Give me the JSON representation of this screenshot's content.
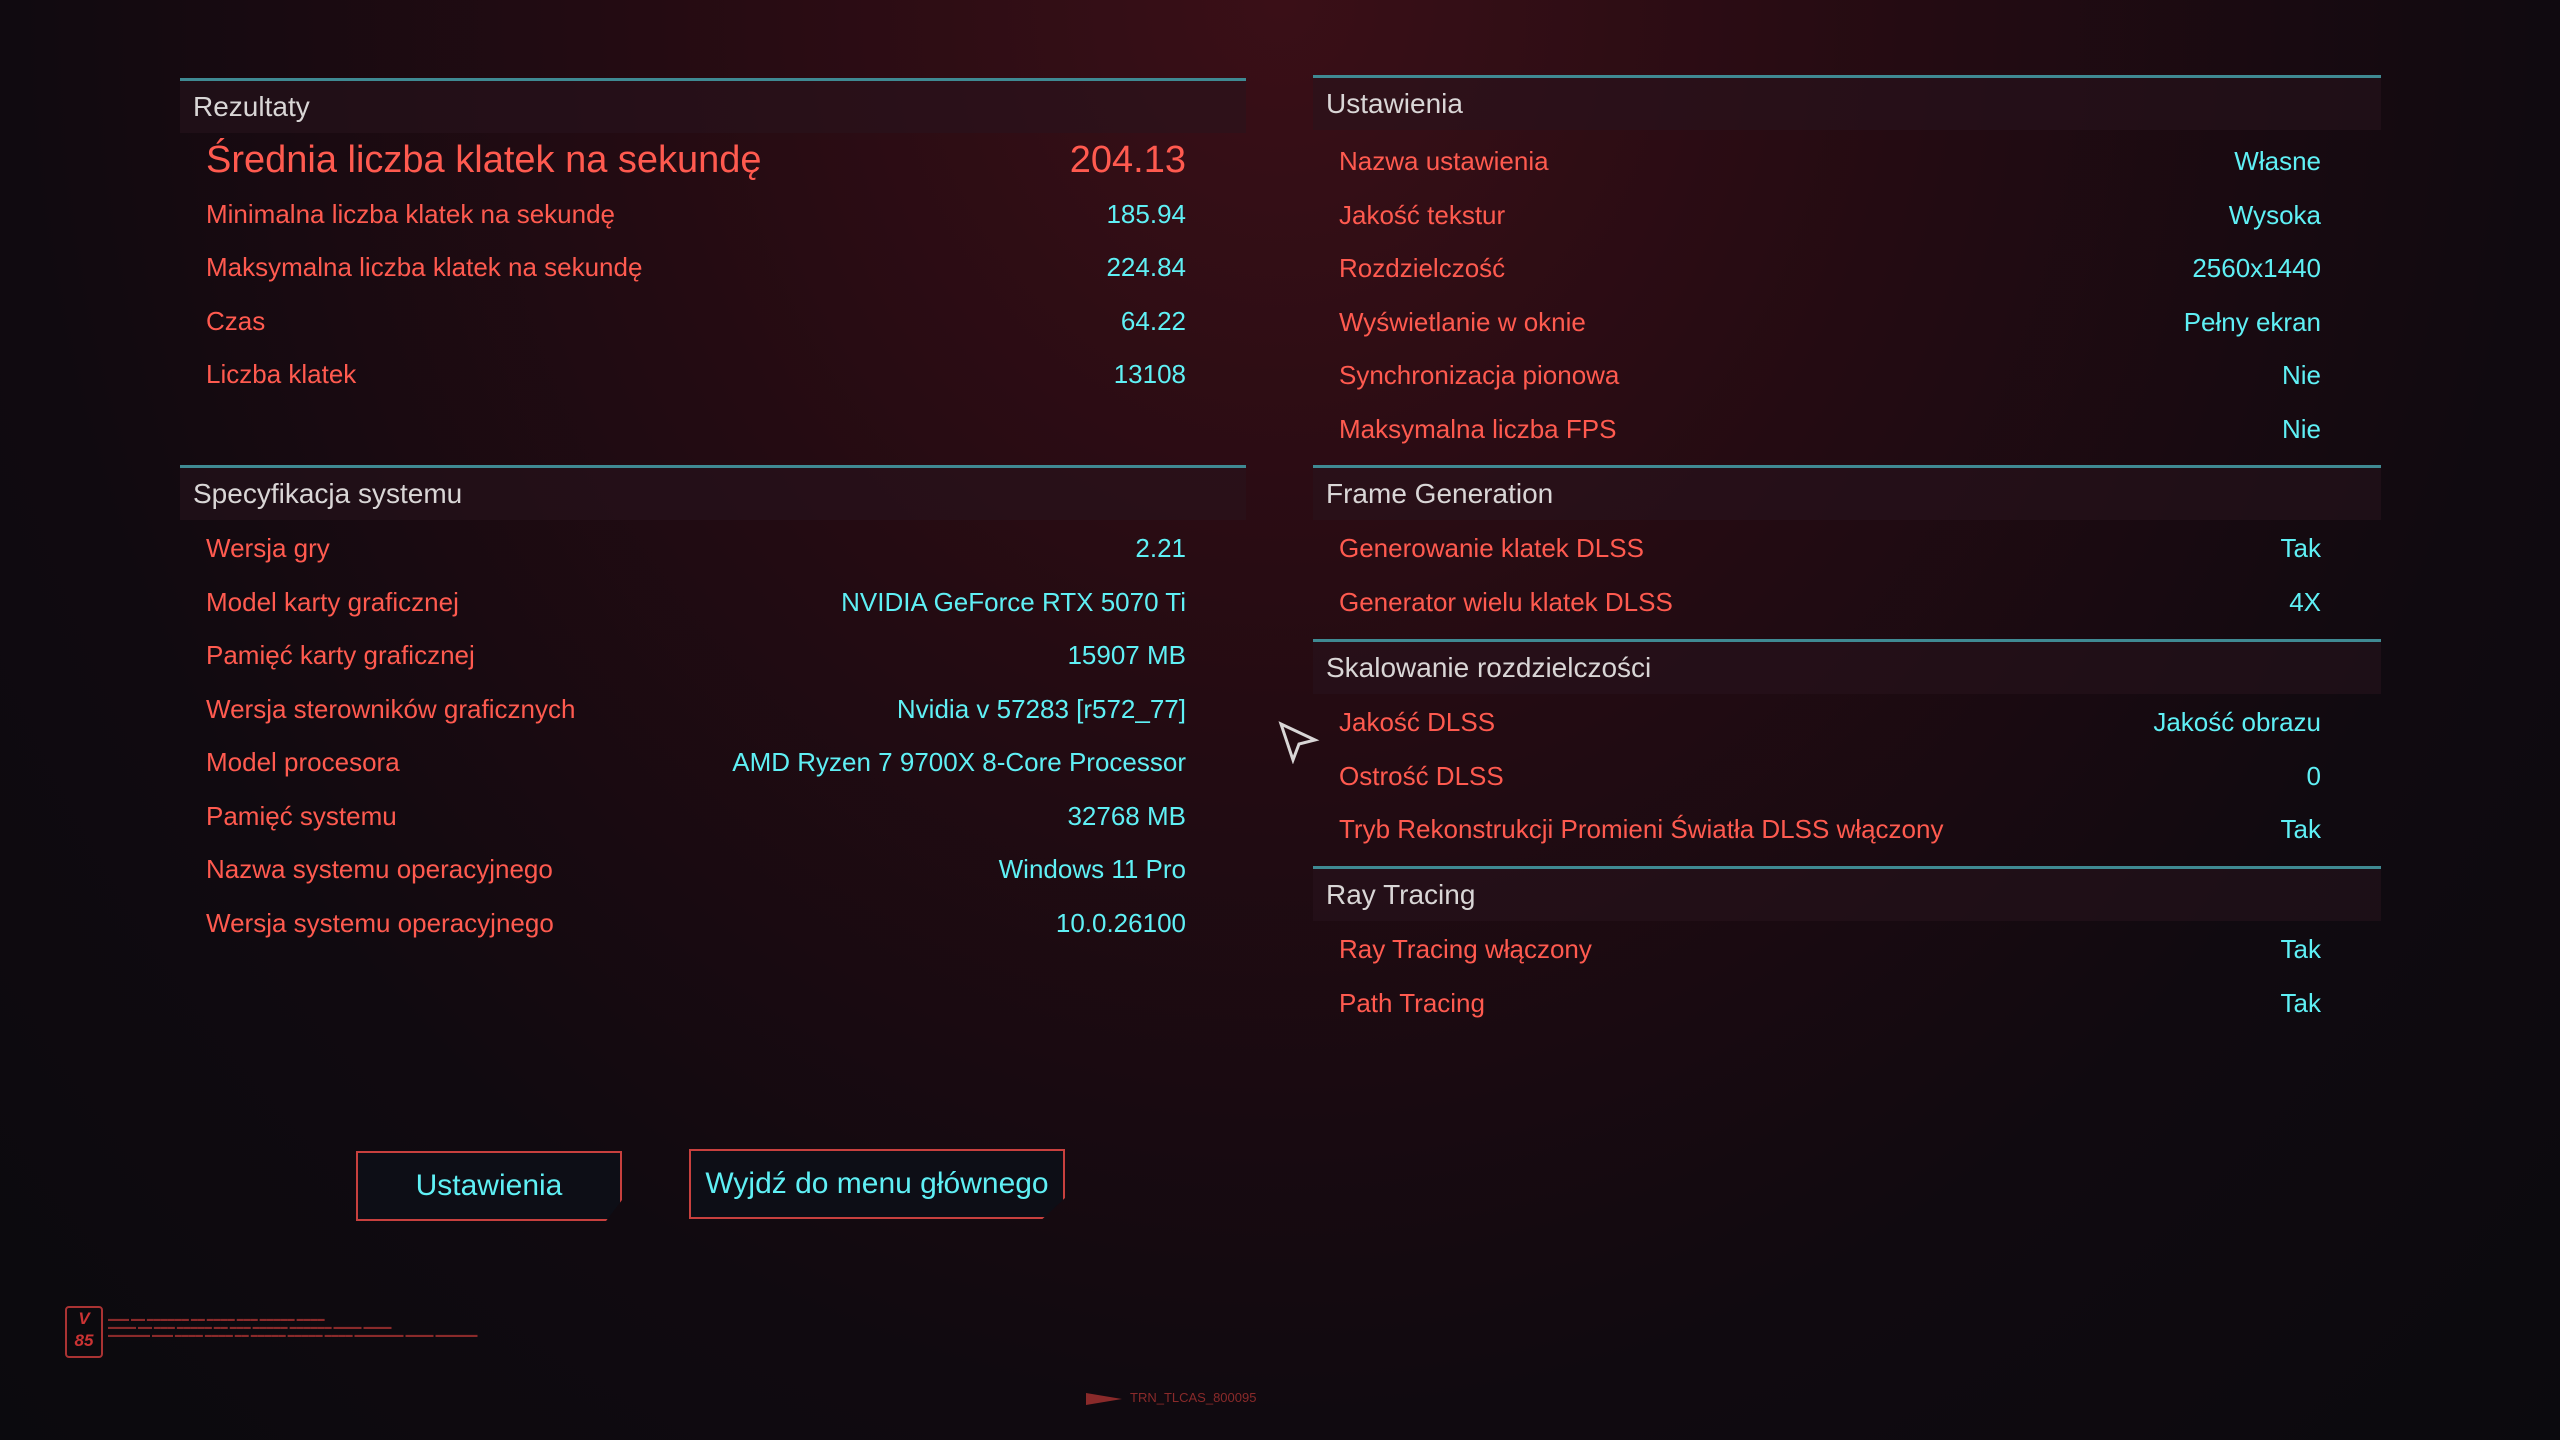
{
  "left_panel": {
    "sections": [
      {
        "title": "Rezultaty",
        "rows": [
          {
            "label": "Średnia liczba klatek na sekundę",
            "value": "204.13",
            "highlight": true
          },
          {
            "label": "Minimalna liczba klatek na sekundę",
            "value": "185.94"
          },
          {
            "label": "Maksymalna liczba klatek na sekundę",
            "value": "224.84"
          },
          {
            "label": "Czas",
            "value": "64.22"
          },
          {
            "label": "Liczba klatek",
            "value": "13108"
          }
        ]
      },
      {
        "title": "Specyfikacja systemu",
        "rows": [
          {
            "label": "Wersja gry",
            "value": "2.21"
          },
          {
            "label": "Model karty graficznej",
            "value": "NVIDIA GeForce RTX 5070 Ti"
          },
          {
            "label": "Pamięć karty graficznej",
            "value": "15907 MB"
          },
          {
            "label": "Wersja sterowników graficznych",
            "value": "Nvidia v 57283 [r572_77]"
          },
          {
            "label": "Model procesora",
            "value": "AMD Ryzen 7 9700X 8-Core Processor"
          },
          {
            "label": "Pamięć systemu",
            "value": "32768 MB"
          },
          {
            "label": "Nazwa systemu operacyjnego",
            "value": "Windows 11 Pro"
          },
          {
            "label": "Wersja systemu operacyjnego",
            "value": "10.0.26100"
          }
        ]
      }
    ]
  },
  "right_panel": {
    "sections": [
      {
        "title": "Ustawienia",
        "rows": [
          {
            "label": "Nazwa ustawienia",
            "value": "Własne"
          },
          {
            "label": "Jakość tekstur",
            "value": "Wysoka"
          },
          {
            "label": "Rozdzielczość",
            "value": "2560x1440"
          },
          {
            "label": "Wyświetlanie w oknie",
            "value": "Pełny ekran"
          },
          {
            "label": "Synchronizacja pionowa",
            "value": "Nie"
          },
          {
            "label": "Maksymalna liczba FPS",
            "value": "Nie"
          }
        ]
      },
      {
        "title": "Frame Generation",
        "rows": [
          {
            "label": "Generowanie klatek DLSS",
            "value": "Tak"
          },
          {
            "label": "Generator wielu klatek DLSS",
            "value": "4X"
          }
        ]
      },
      {
        "title": "Skalowanie rozdzielczości",
        "rows": [
          {
            "label": "Jakość DLSS",
            "value": "Jakość obrazu"
          },
          {
            "label": "Ostrość DLSS",
            "value": "0"
          },
          {
            "label": "Tryb Rekonstrukcji Promieni Światła DLSS włączony",
            "value": "Tak"
          }
        ]
      },
      {
        "title": "Ray Tracing",
        "rows": [
          {
            "label": "Ray Tracing włączony",
            "value": "Tak"
          },
          {
            "label": "Path Tracing",
            "value": "Tak"
          }
        ]
      }
    ]
  },
  "buttons": {
    "settings": "Ustawienia",
    "exit": "Wyjdź do menu głównego"
  },
  "footer": {
    "logo": "V 85",
    "code": "TRN_TLCAS_800095"
  },
  "colors": {
    "label": "#ff5a4f",
    "value": "#5ff0f5",
    "divider": "#3f8a93",
    "button_border": "#c8403e"
  }
}
